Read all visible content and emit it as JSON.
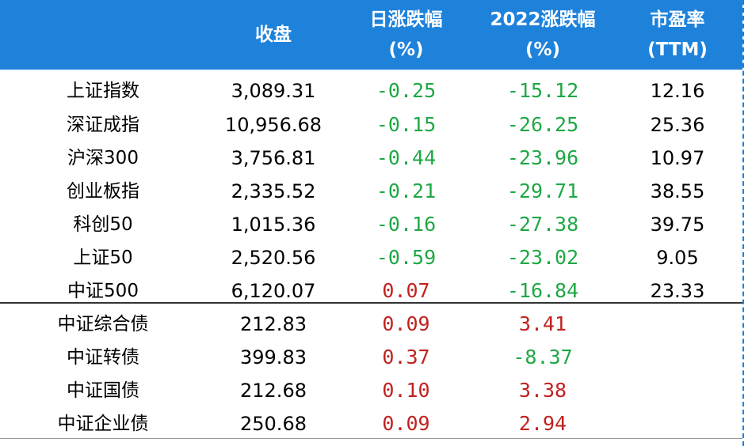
{
  "headers": {
    "close": "收盘",
    "daily_line1": "日涨跌幅",
    "daily_line2": "(%)",
    "ytd_line1": "2022涨跌幅",
    "ytd_line2": "(%)",
    "pe_line1": "市盈率",
    "pe_line2": "(TTM)"
  },
  "colors": {
    "header_bg": "#1e82db",
    "negative": "#1fa845",
    "positive": "#c0221f"
  },
  "rows": [
    {
      "name": "上证指数",
      "close": "3,089.31",
      "daily": "-0.25",
      "ytd": "-15.12",
      "pe": "12.16"
    },
    {
      "name": "深证成指",
      "close": "10,956.68",
      "daily": "-0.15",
      "ytd": "-26.25",
      "pe": "25.36"
    },
    {
      "name": "沪深300",
      "close": "3,756.81",
      "daily": "-0.44",
      "ytd": "-23.96",
      "pe": "10.97"
    },
    {
      "name": "创业板指",
      "close": "2,335.52",
      "daily": "-0.21",
      "ytd": "-29.71",
      "pe": "38.55"
    },
    {
      "name": "科创50",
      "close": "1,015.36",
      "daily": "-0.16",
      "ytd": "-27.38",
      "pe": "39.75"
    },
    {
      "name": "上证50",
      "close": "2,520.56",
      "daily": "-0.59",
      "ytd": "-23.02",
      "pe": "9.05"
    },
    {
      "name": "中证500",
      "close": "6,120.07",
      "daily": "0.07",
      "ytd": "-16.84",
      "pe": "23.33"
    },
    {
      "name": "中证综合债",
      "close": "212.83",
      "daily": "0.09",
      "ytd": "3.41",
      "pe": ""
    },
    {
      "name": "中证转债",
      "close": "399.83",
      "daily": "0.37",
      "ytd": "-8.37",
      "pe": ""
    },
    {
      "name": "中证国债",
      "close": "212.68",
      "daily": "0.10",
      "ytd": "3.38",
      "pe": ""
    },
    {
      "name": "中证企业债",
      "close": "250.68",
      "daily": "0.09",
      "ytd": "2.94",
      "pe": ""
    }
  ]
}
